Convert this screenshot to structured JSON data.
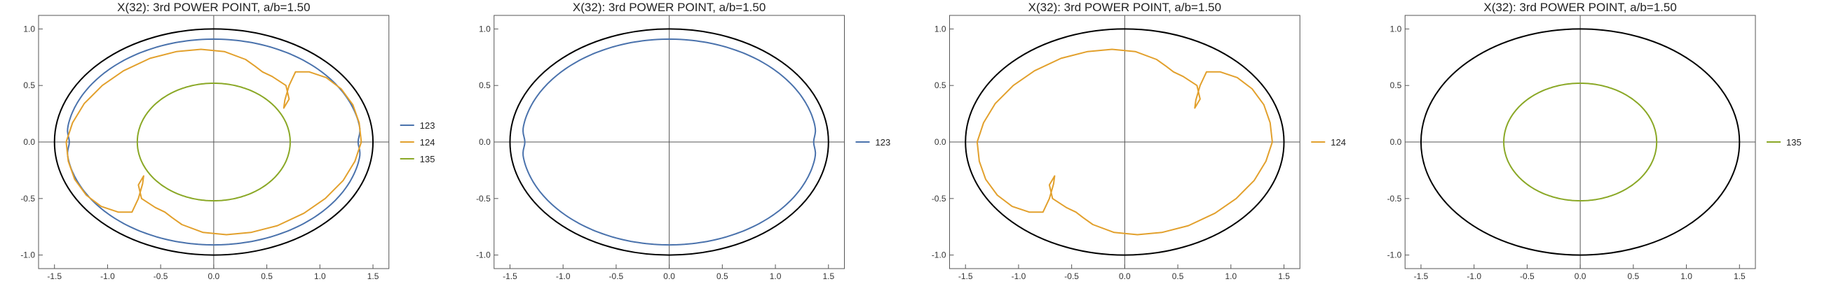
{
  "figure": {
    "background": "#ffffff"
  },
  "chart_data": [
    {
      "type": "line",
      "title": "X(32): 3rd POWER POINT, a/b=1.50",
      "xlabel": "",
      "ylabel": "",
      "xlim": [
        -1.65,
        1.65
      ],
      "ylim": [
        -1.12,
        1.12
      ],
      "xticks": [
        -1.5,
        -1.0,
        -0.5,
        0.0,
        0.5,
        1.0,
        1.5
      ],
      "xtick_labels": [
        "-1.5",
        "-1.0",
        "-0.5",
        "0.0",
        "0.5",
        "1.0",
        "1.5"
      ],
      "yticks": [
        -1.0,
        -0.5,
        0.0,
        0.5,
        1.0
      ],
      "ytick_labels": [
        "-1.0",
        "-0.5",
        "0.0",
        "0.5",
        "1.0"
      ],
      "grid": false,
      "legend_position": "right",
      "ellipse": {
        "a": 1.5,
        "b": 1.0,
        "color": "#000000"
      },
      "series": [
        {
          "name": "123",
          "color": "#4a72ac",
          "shape": "dimpled-ellipse",
          "a": 1.39,
          "b": 0.91,
          "dimple": 0.03
        },
        {
          "name": "124",
          "color": "#e2a02c",
          "shape": "looped",
          "points": [
            [
              1.39,
              0.0
            ],
            [
              1.37,
              0.17
            ],
            [
              1.31,
              0.33
            ],
            [
              1.2,
              0.47
            ],
            [
              1.06,
              0.57
            ],
            [
              0.9,
              0.62
            ],
            [
              0.77,
              0.62
            ],
            [
              0.71,
              0.5
            ],
            [
              0.67,
              0.37
            ],
            [
              0.66,
              0.3
            ],
            [
              0.71,
              0.38
            ],
            [
              0.68,
              0.5
            ],
            [
              0.55,
              0.58
            ],
            [
              0.46,
              0.62
            ],
            [
              0.39,
              0.67
            ],
            [
              0.3,
              0.73
            ],
            [
              0.1,
              0.8
            ],
            [
              -0.12,
              0.82
            ],
            [
              -0.35,
              0.8
            ],
            [
              -0.6,
              0.74
            ],
            [
              -0.85,
              0.63
            ],
            [
              -1.05,
              0.5
            ],
            [
              -1.22,
              0.34
            ],
            [
              -1.33,
              0.17
            ],
            [
              -1.39,
              0.0
            ],
            [
              -1.37,
              -0.17
            ],
            [
              -1.31,
              -0.33
            ],
            [
              -1.2,
              -0.47
            ],
            [
              -1.06,
              -0.57
            ],
            [
              -0.9,
              -0.62
            ],
            [
              -0.77,
              -0.62
            ],
            [
              -0.71,
              -0.5
            ],
            [
              -0.67,
              -0.37
            ],
            [
              -0.66,
              -0.3
            ],
            [
              -0.71,
              -0.38
            ],
            [
              -0.68,
              -0.5
            ],
            [
              -0.55,
              -0.58
            ],
            [
              -0.46,
              -0.62
            ],
            [
              -0.39,
              -0.67
            ],
            [
              -0.3,
              -0.73
            ],
            [
              -0.1,
              -0.8
            ],
            [
              0.12,
              -0.82
            ],
            [
              0.35,
              -0.8
            ],
            [
              0.6,
              -0.74
            ],
            [
              0.85,
              -0.63
            ],
            [
              1.05,
              -0.5
            ],
            [
              1.22,
              -0.34
            ],
            [
              1.33,
              -0.17
            ],
            [
              1.39,
              0.0
            ]
          ]
        },
        {
          "name": "135",
          "color": "#8aa826",
          "shape": "ellipse",
          "a": 0.72,
          "b": 0.52
        }
      ]
    },
    {
      "type": "line",
      "title": "X(32): 3rd POWER POINT, a/b=1.50",
      "xlabel": "",
      "ylabel": "",
      "xlim": [
        -1.65,
        1.65
      ],
      "ylim": [
        -1.12,
        1.12
      ],
      "xticks": [
        -1.5,
        -1.0,
        -0.5,
        0.0,
        0.5,
        1.0,
        1.5
      ],
      "xtick_labels": [
        "-1.5",
        "-1.0",
        "-0.5",
        "0.0",
        "0.5",
        "1.0",
        "1.5"
      ],
      "yticks": [
        -1.0,
        -0.5,
        0.0,
        0.5,
        1.0
      ],
      "ytick_labels": [
        "-1.0",
        "-0.5",
        "0.0",
        "0.5",
        "1.0"
      ],
      "grid": false,
      "legend_position": "right",
      "ellipse": {
        "a": 1.5,
        "b": 1.0,
        "color": "#000000"
      },
      "series": [
        {
          "name": "123",
          "color": "#4a72ac",
          "shape": "dimpled-ellipse",
          "a": 1.39,
          "b": 0.91,
          "dimple": 0.03
        }
      ]
    },
    {
      "type": "line",
      "title": "X(32): 3rd POWER POINT, a/b=1.50",
      "xlabel": "",
      "ylabel": "",
      "xlim": [
        -1.65,
        1.65
      ],
      "ylim": [
        -1.12,
        1.12
      ],
      "xticks": [
        -1.5,
        -1.0,
        -0.5,
        0.0,
        0.5,
        1.0,
        1.5
      ],
      "xtick_labels": [
        "-1.5",
        "-1.0",
        "-0.5",
        "0.0",
        "0.5",
        "1.0",
        "1.5"
      ],
      "yticks": [
        -1.0,
        -0.5,
        0.0,
        0.5,
        1.0
      ],
      "ytick_labels": [
        "-1.0",
        "-0.5",
        "0.0",
        "0.5",
        "1.0"
      ],
      "grid": false,
      "legend_position": "right",
      "ellipse": {
        "a": 1.5,
        "b": 1.0,
        "color": "#000000"
      },
      "series": [
        {
          "name": "124",
          "color": "#e2a02c",
          "shape": "looped",
          "points": [
            [
              1.39,
              0.0
            ],
            [
              1.37,
              0.17
            ],
            [
              1.31,
              0.33
            ],
            [
              1.2,
              0.47
            ],
            [
              1.06,
              0.57
            ],
            [
              0.9,
              0.62
            ],
            [
              0.77,
              0.62
            ],
            [
              0.71,
              0.5
            ],
            [
              0.67,
              0.37
            ],
            [
              0.66,
              0.3
            ],
            [
              0.71,
              0.38
            ],
            [
              0.68,
              0.5
            ],
            [
              0.55,
              0.58
            ],
            [
              0.46,
              0.62
            ],
            [
              0.39,
              0.67
            ],
            [
              0.3,
              0.73
            ],
            [
              0.1,
              0.8
            ],
            [
              -0.12,
              0.82
            ],
            [
              -0.35,
              0.8
            ],
            [
              -0.6,
              0.74
            ],
            [
              -0.85,
              0.63
            ],
            [
              -1.05,
              0.5
            ],
            [
              -1.22,
              0.34
            ],
            [
              -1.33,
              0.17
            ],
            [
              -1.39,
              0.0
            ],
            [
              -1.37,
              -0.17
            ],
            [
              -1.31,
              -0.33
            ],
            [
              -1.2,
              -0.47
            ],
            [
              -1.06,
              -0.57
            ],
            [
              -0.9,
              -0.62
            ],
            [
              -0.77,
              -0.62
            ],
            [
              -0.71,
              -0.5
            ],
            [
              -0.67,
              -0.37
            ],
            [
              -0.66,
              -0.3
            ],
            [
              -0.71,
              -0.38
            ],
            [
              -0.68,
              -0.5
            ],
            [
              -0.55,
              -0.58
            ],
            [
              -0.46,
              -0.62
            ],
            [
              -0.39,
              -0.67
            ],
            [
              -0.3,
              -0.73
            ],
            [
              -0.1,
              -0.8
            ],
            [
              0.12,
              -0.82
            ],
            [
              0.35,
              -0.8
            ],
            [
              0.6,
              -0.74
            ],
            [
              0.85,
              -0.63
            ],
            [
              1.05,
              -0.5
            ],
            [
              1.22,
              -0.34
            ],
            [
              1.33,
              -0.17
            ],
            [
              1.39,
              0.0
            ]
          ]
        }
      ]
    },
    {
      "type": "line",
      "title": "X(32): 3rd POWER POINT, a/b=1.50",
      "xlabel": "",
      "ylabel": "",
      "xlim": [
        -1.65,
        1.65
      ],
      "ylim": [
        -1.12,
        1.12
      ],
      "xticks": [
        -1.5,
        -1.0,
        -0.5,
        0.0,
        0.5,
        1.0,
        1.5
      ],
      "xtick_labels": [
        "-1.5",
        "-1.0",
        "-0.5",
        "0.0",
        "0.5",
        "1.0",
        "1.5"
      ],
      "yticks": [
        -1.0,
        -0.5,
        0.0,
        0.5,
        1.0
      ],
      "ytick_labels": [
        "-1.0",
        "-0.5",
        "0.0",
        "0.5",
        "1.0"
      ],
      "grid": false,
      "legend_position": "right",
      "ellipse": {
        "a": 1.5,
        "b": 1.0,
        "color": "#000000"
      },
      "series": [
        {
          "name": "135",
          "color": "#8aa826",
          "shape": "ellipse",
          "a": 0.72,
          "b": 0.52
        }
      ]
    }
  ]
}
